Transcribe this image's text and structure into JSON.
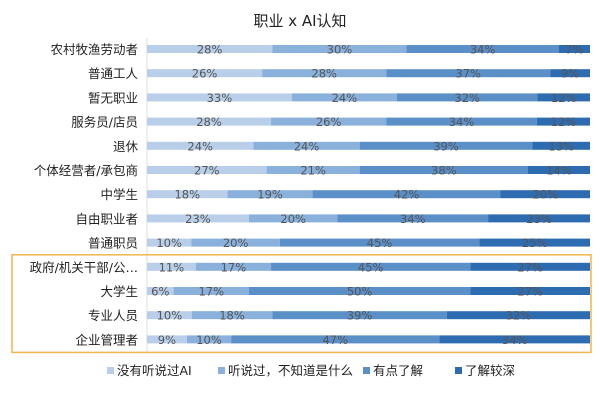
{
  "chart_data": {
    "type": "bar",
    "orientation": "horizontal",
    "stacked": true,
    "percent": true,
    "title": "职业 x AI认知",
    "categories": [
      "农村牧渔劳动者",
      "普通工人",
      "暂无职业",
      "服务员/店员",
      "退休",
      "个体经营者/承包商",
      "中学生",
      "自由职业者",
      "普通职员",
      "政府/机关干部/公…",
      "大学生",
      "专业人员",
      "企业管理者"
    ],
    "series": [
      {
        "name": "没有听说过AI",
        "color": "#b9cfe9",
        "values": [
          28,
          26,
          33,
          28,
          24,
          27,
          18,
          23,
          10,
          11,
          6,
          10,
          9
        ]
      },
      {
        "name": "听说过，不知道是什么",
        "color": "#89b1dc",
        "values": [
          30,
          28,
          24,
          26,
          24,
          21,
          19,
          20,
          20,
          17,
          17,
          18,
          10
        ]
      },
      {
        "name": "有点了解",
        "color": "#5a8fc8",
        "values": [
          34,
          37,
          32,
          34,
          39,
          38,
          42,
          34,
          45,
          45,
          50,
          39,
          47
        ]
      },
      {
        "name": "了解较深",
        "color": "#2e6cb1",
        "values": [
          7,
          9,
          12,
          12,
          13,
          14,
          20,
          23,
          25,
          27,
          27,
          32,
          34
        ]
      }
    ],
    "highlight_categories": [
      "政府/机关干部/公…",
      "大学生",
      "专业人员",
      "企业管理者"
    ],
    "highlight_color": "#f0b64a",
    "legend_position": "bottom",
    "grid": false
  }
}
